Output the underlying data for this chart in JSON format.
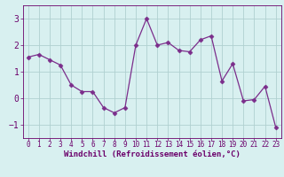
{
  "x": [
    0,
    1,
    2,
    3,
    4,
    5,
    6,
    7,
    8,
    9,
    10,
    11,
    12,
    13,
    14,
    15,
    16,
    17,
    18,
    19,
    20,
    21,
    22,
    23
  ],
  "y": [
    1.55,
    1.65,
    1.45,
    1.25,
    0.5,
    0.25,
    0.25,
    -0.35,
    -0.55,
    -0.35,
    2.0,
    3.0,
    2.0,
    2.1,
    1.8,
    1.75,
    2.2,
    2.35,
    0.65,
    1.3,
    -0.1,
    -0.05,
    0.45,
    -1.1
  ],
  "line_color": "#7B2D8B",
  "marker": "D",
  "marker_size": 2.5,
  "bg_color": "#d8f0f0",
  "grid_color": "#b0d0d0",
  "xlabel": "Windchill (Refroidissement éolien,°C)",
  "xlabel_color": "#6B006B",
  "tick_color": "#6B006B",
  "ylim": [
    -1.5,
    3.5
  ],
  "yticks": [
    -1,
    0,
    1,
    2,
    3
  ],
  "xlim": [
    -0.5,
    23.5
  ],
  "xticks": [
    0,
    1,
    2,
    3,
    4,
    5,
    6,
    7,
    8,
    9,
    10,
    11,
    12,
    13,
    14,
    15,
    16,
    17,
    18,
    19,
    20,
    21,
    22,
    23
  ],
  "xtick_fontsize": 5.5,
  "ytick_fontsize": 7,
  "xlabel_fontsize": 6.5
}
